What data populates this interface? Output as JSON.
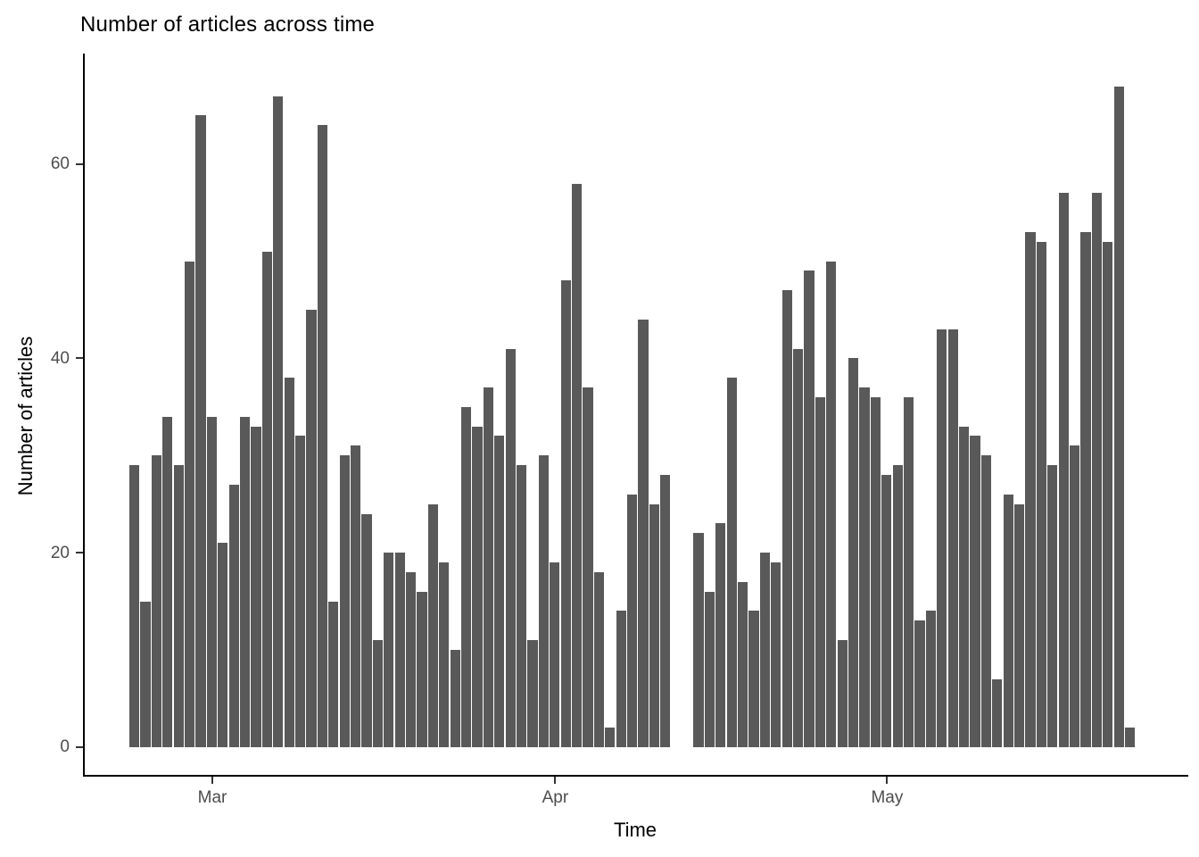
{
  "chart_data": {
    "type": "bar",
    "title": "Number of articles across time",
    "xlabel": "Time",
    "ylabel": "Number of articles",
    "x_axis_kind": "date",
    "x_start_date": "Feb 22",
    "x_end_date": "May 23",
    "gap_positions_note": "two missing days rendered as a gap (positions 50-51, ~Apr 12-13)",
    "x_tick_labels": [
      "Mar",
      "Apr",
      "May"
    ],
    "x_tick_positions": [
      8,
      39,
      69
    ],
    "y_ticks": [
      0,
      20,
      40,
      60
    ],
    "ylim": [
      0,
      71
    ],
    "grid": "off",
    "legend": "none",
    "bar_color": "#595959",
    "axis_color": "#000000",
    "tick_label_color": "#4d4d4d",
    "values": [
      29,
      15,
      30,
      34,
      29,
      50,
      65,
      34,
      21,
      27,
      34,
      33,
      51,
      67,
      38,
      32,
      45,
      64,
      15,
      30,
      31,
      24,
      11,
      20,
      20,
      18,
      16,
      25,
      19,
      10,
      35,
      33,
      37,
      32,
      41,
      29,
      11,
      30,
      19,
      48,
      58,
      37,
      18,
      2,
      14,
      26,
      44,
      25,
      28,
      null,
      null,
      22,
      16,
      23,
      38,
      17,
      14,
      20,
      19,
      47,
      41,
      49,
      36,
      50,
      11,
      40,
      37,
      36,
      28,
      29,
      36,
      13,
      14,
      43,
      43,
      33,
      32,
      30,
      7,
      26,
      25,
      53,
      52,
      29,
      57,
      31,
      53,
      57,
      52,
      68,
      2
    ]
  }
}
